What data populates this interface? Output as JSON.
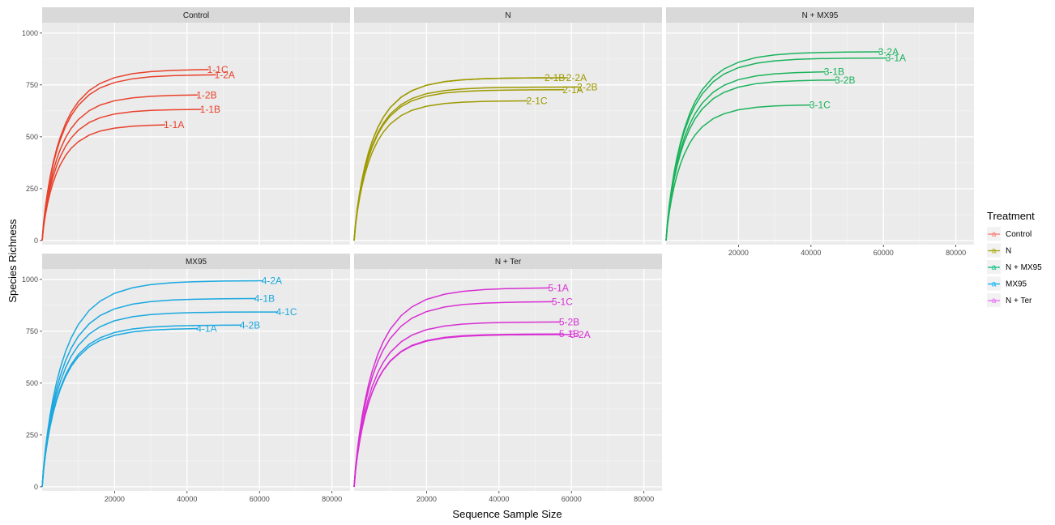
{
  "chart_data": {
    "type": "line",
    "xlabel": "Sequence Sample Size",
    "ylabel": "Species Richness",
    "xlim": [
      0,
      85000
    ],
    "ylim": [
      -20,
      1050
    ],
    "x_ticks": [
      20000,
      40000,
      60000,
      80000
    ],
    "y_ticks": [
      0,
      250,
      500,
      750,
      1000
    ],
    "grid": true,
    "legend": {
      "title": "Treatment",
      "placement": "right",
      "entries": [
        {
          "label": "Control",
          "color": "#F8766D",
          "glyph": "a"
        },
        {
          "label": "N",
          "color": "#A3A500",
          "glyph": "a"
        },
        {
          "label": "N + MX95",
          "color": "#00BF7D",
          "glyph": "a"
        },
        {
          "label": "MX95",
          "color": "#00B0F6",
          "glyph": "a"
        },
        {
          "label": "N + Ter",
          "color": "#E76BF3",
          "glyph": "a"
        }
      ]
    },
    "panels": [
      {
        "title": "Control",
        "color": "#e8412b",
        "series": [
          {
            "name": "1-1C",
            "max_x": 46000,
            "asymptote": 826
          },
          {
            "name": "1-2A",
            "max_x": 48000,
            "asymptote": 800
          },
          {
            "name": "1-2B",
            "max_x": 43000,
            "asymptote": 703
          },
          {
            "name": "1-1B",
            "max_x": 44000,
            "asymptote": 633
          },
          {
            "name": "1-1A",
            "max_x": 34000,
            "asymptote": 560
          }
        ]
      },
      {
        "title": "N",
        "color": "#9e9a00",
        "series": [
          {
            "name": "2-1B",
            "max_x": 53000,
            "asymptote": 785
          },
          {
            "name": "2-2A",
            "max_x": 59000,
            "asymptote": 785
          },
          {
            "name": "2-2B",
            "max_x": 62000,
            "asymptote": 740
          },
          {
            "name": "2-1A",
            "max_x": 58000,
            "asymptote": 727
          },
          {
            "name": "2-1C",
            "max_x": 48000,
            "asymptote": 674
          }
        ]
      },
      {
        "title": "N + MX95",
        "color": "#1bb35c",
        "series": [
          {
            "name": "3-2A",
            "max_x": 59000,
            "asymptote": 910
          },
          {
            "name": "3-1A",
            "max_x": 61000,
            "asymptote": 880
          },
          {
            "name": "3-1B",
            "max_x": 44000,
            "asymptote": 815
          },
          {
            "name": "3-2B",
            "max_x": 47000,
            "asymptote": 775
          },
          {
            "name": "3-1C",
            "max_x": 40000,
            "asymptote": 655
          }
        ]
      },
      {
        "title": "MX95",
        "color": "#1aa8df",
        "series": [
          {
            "name": "4-2A",
            "max_x": 61000,
            "asymptote": 994
          },
          {
            "name": "4-1B",
            "max_x": 59000,
            "asymptote": 908
          },
          {
            "name": "4-1C",
            "max_x": 65000,
            "asymptote": 843
          },
          {
            "name": "4-2B",
            "max_x": 55000,
            "asymptote": 780
          },
          {
            "name": "4-1A",
            "max_x": 43000,
            "asymptote": 765
          }
        ]
      },
      {
        "title": "N + Ter",
        "color": "#d82fd3",
        "series": [
          {
            "name": "5-1A",
            "max_x": 54000,
            "asymptote": 960
          },
          {
            "name": "5-1C",
            "max_x": 55000,
            "asymptote": 893
          },
          {
            "name": "5-2B",
            "max_x": 57000,
            "asymptote": 795
          },
          {
            "name": "5-1B",
            "max_x": 57000,
            "asymptote": 737
          },
          {
            "name": "5-2A",
            "max_x": 60000,
            "asymptote": 734
          }
        ]
      }
    ]
  }
}
